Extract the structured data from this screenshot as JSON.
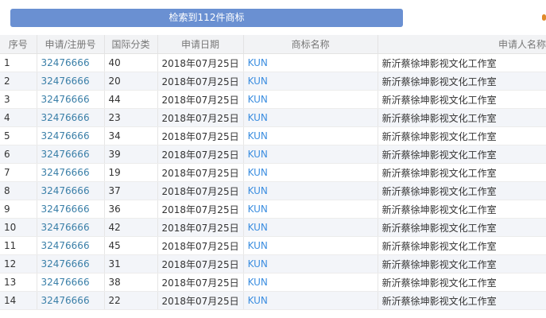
{
  "banner": "检索到112件商标",
  "colors": {
    "banner": "#6a90d2",
    "link": "#3a7fa8",
    "trademark": "#3c8ee0"
  },
  "headers": [
    "序号",
    "申请/注册号",
    "国际分类",
    "申请日期",
    "商标名称",
    "申请人名称"
  ],
  "rows": [
    [
      "1",
      "32476666",
      "40",
      "2018年07月25日",
      "KUN",
      "新沂蔡徐坤影视文化工作室"
    ],
    [
      "2",
      "32476666",
      "20",
      "2018年07月25日",
      "KUN",
      "新沂蔡徐坤影视文化工作室"
    ],
    [
      "3",
      "32476666",
      "44",
      "2018年07月25日",
      "KUN",
      "新沂蔡徐坤影视文化工作室"
    ],
    [
      "4",
      "32476666",
      "23",
      "2018年07月25日",
      "KUN",
      "新沂蔡徐坤影视文化工作室"
    ],
    [
      "5",
      "32476666",
      "34",
      "2018年07月25日",
      "KUN",
      "新沂蔡徐坤影视文化工作室"
    ],
    [
      "6",
      "32476666",
      "39",
      "2018年07月25日",
      "KUN",
      "新沂蔡徐坤影视文化工作室"
    ],
    [
      "7",
      "32476666",
      "19",
      "2018年07月25日",
      "KUN",
      "新沂蔡徐坤影视文化工作室"
    ],
    [
      "8",
      "32476666",
      "37",
      "2018年07月25日",
      "KUN",
      "新沂蔡徐坤影视文化工作室"
    ],
    [
      "9",
      "32476666",
      "36",
      "2018年07月25日",
      "KUN",
      "新沂蔡徐坤影视文化工作室"
    ],
    [
      "10",
      "32476666",
      "42",
      "2018年07月25日",
      "KUN",
      "新沂蔡徐坤影视文化工作室"
    ],
    [
      "11",
      "32476666",
      "45",
      "2018年07月25日",
      "KUN",
      "新沂蔡徐坤影视文化工作室"
    ],
    [
      "12",
      "32476666",
      "31",
      "2018年07月25日",
      "KUN",
      "新沂蔡徐坤影视文化工作室"
    ],
    [
      "13",
      "32476666",
      "38",
      "2018年07月25日",
      "KUN",
      "新沂蔡徐坤影视文化工作室"
    ],
    [
      "14",
      "32476666",
      "22",
      "2018年07月25日",
      "KUN",
      "新沂蔡徐坤影视文化工作室"
    ]
  ]
}
